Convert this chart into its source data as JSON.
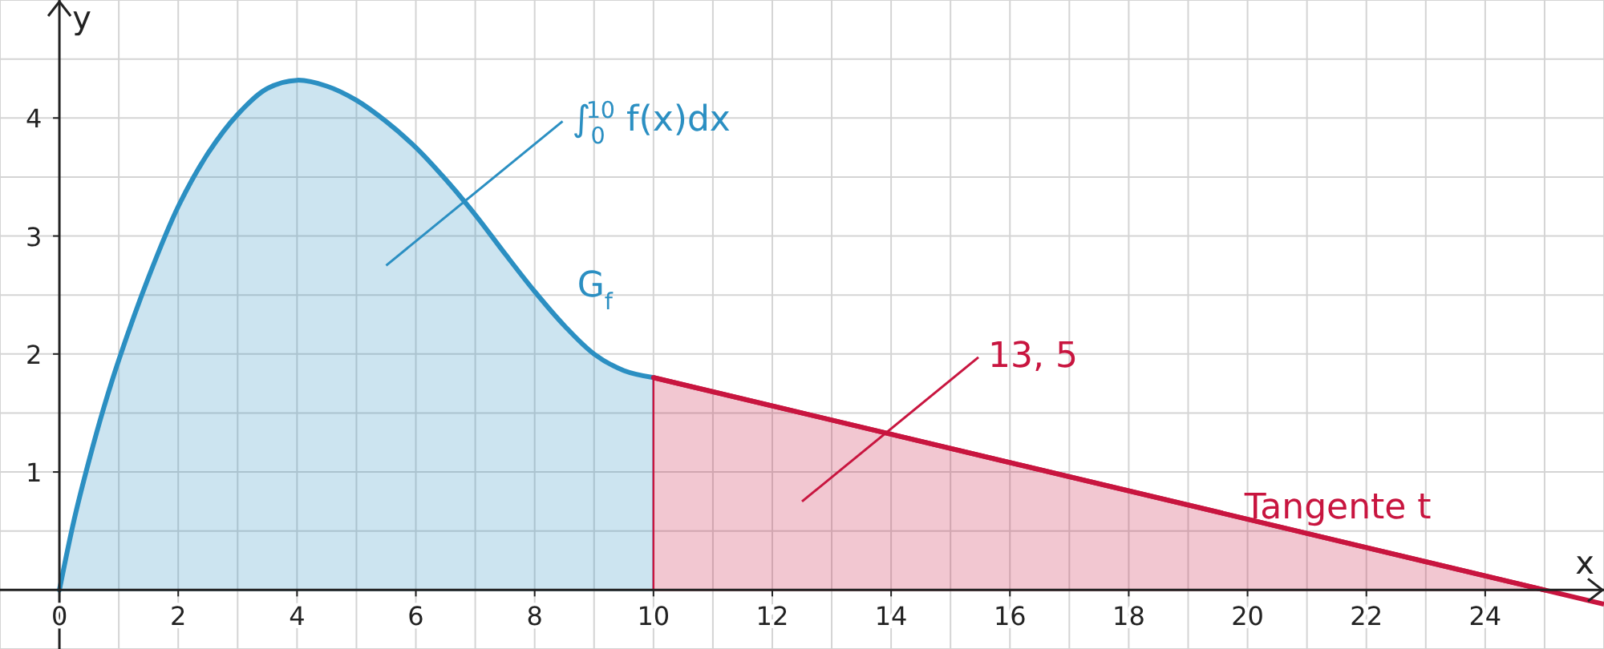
{
  "chart_data": {
    "type": "area",
    "xlabel": "x",
    "ylabel": "y",
    "xlim": [
      -1,
      26
    ],
    "ylim": [
      -0.5,
      5
    ],
    "xticks": [
      0,
      2,
      4,
      6,
      8,
      10,
      12,
      14,
      16,
      18,
      20,
      22,
      24
    ],
    "yticks": [
      1,
      2,
      3,
      4
    ],
    "grid": true,
    "series": [
      {
        "name": "G$_{f}$",
        "color": "#2b8fc2",
        "x": [
          0,
          0.25,
          0.5,
          0.75,
          1,
          1.5,
          2,
          2.5,
          3,
          3.5,
          4,
          4.5,
          5,
          5.5,
          6,
          6.5,
          7,
          7.5,
          8,
          8.5,
          9,
          9.5,
          10
        ],
        "values": [
          0,
          0.6,
          1.1,
          1.55,
          1.95,
          2.65,
          3.25,
          3.7,
          4.03,
          4.25,
          4.32,
          4.27,
          4.15,
          3.97,
          3.75,
          3.48,
          3.18,
          2.85,
          2.53,
          2.24,
          2.0,
          1.86,
          1.8
        ]
      },
      {
        "type": "area",
        "color": "#c8153f",
        "x": [
          10,
          25
        ],
        "values": [
          1.8,
          0
        ]
      },
      {
        "name": "Tangente t",
        "type": "line",
        "color": "#c8153f",
        "x": [
          10,
          26
        ],
        "values": [
          1.8,
          -0.12
        ]
      }
    ],
    "annotations": [
      "∫$_{0}$$^{10}$ f(x)dx",
      "13, 5"
    ]
  }
}
